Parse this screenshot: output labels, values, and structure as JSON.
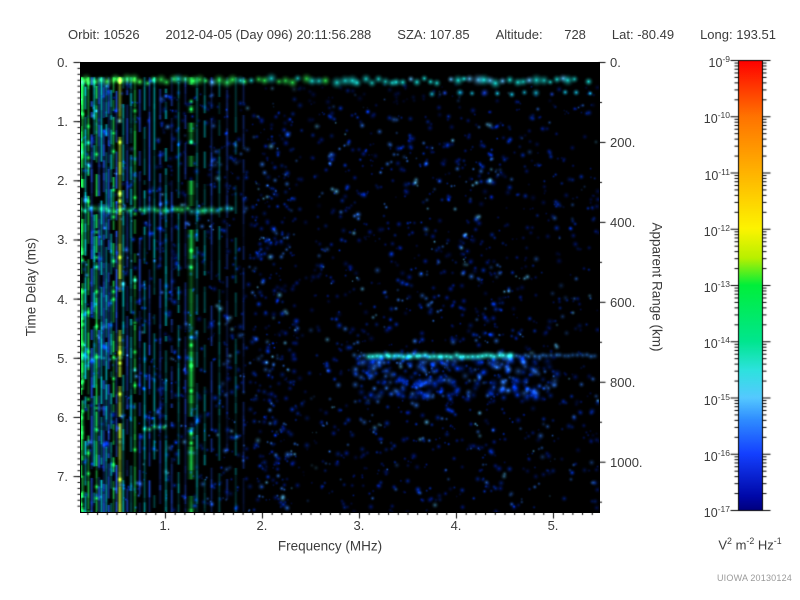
{
  "header": {
    "items": [
      "Orbit: 10526",
      "2012-04-05 (Day 096) 20:11:56.288",
      "SZA: 107.85",
      "Altitude:      728",
      "Lat: -80.49",
      "Long: 193.51"
    ]
  },
  "footer": {
    "credit": "UIOWA 20130124"
  },
  "chart_data": {
    "type": "heatmap",
    "subtype": "radar-ionogram-spectrogram",
    "x_axis": {
      "label": "Frequency (MHz)",
      "min": 0.124,
      "max": 5.464,
      "major_ticks": [
        1,
        2,
        3,
        4,
        5
      ],
      "tick_labels": [
        "1.",
        "2.",
        "3.",
        "4.",
        "5."
      ],
      "minor_step": 0.1
    },
    "y_axis": {
      "label": "Time Delay (ms)",
      "min": 0,
      "max": 7.59,
      "major_ticks": [
        0,
        1,
        2,
        3,
        4,
        5,
        6,
        7
      ],
      "tick_labels": [
        "0.",
        "1.",
        "2.",
        "3.",
        "4.",
        "5.",
        "6.",
        "7."
      ],
      "minor_step": 0.1
    },
    "y2_axis": {
      "label": "Apparent Range (km)",
      "major_ticks": [
        0,
        200,
        400,
        600,
        800,
        1000
      ],
      "tick_labels": [
        "0.",
        "200.",
        "400.",
        "600.",
        "800.",
        "1000."
      ],
      "minor_step": 100,
      "km_per_ms": 148
    },
    "colorbar": {
      "unit_parts": [
        {
          "base": "V",
          "exp": "2"
        },
        {
          "base": "m",
          "exp": "-2"
        },
        {
          "base": "Hz",
          "exp": "-1"
        }
      ],
      "tick_exponents": [
        -9,
        -10,
        -11,
        -12,
        -13,
        -14,
        -15,
        -16,
        -17
      ],
      "stops": [
        [
          0.0,
          "#ff0000"
        ],
        [
          0.125,
          "#ff7300"
        ],
        [
          0.25,
          "#ffb300"
        ],
        [
          0.375,
          "#fdf400"
        ],
        [
          0.44,
          "#b8f000"
        ],
        [
          0.5,
          "#00ef3a"
        ],
        [
          0.625,
          "#00e68e"
        ],
        [
          0.69,
          "#2ee2df"
        ],
        [
          0.75,
          "#55c9ff"
        ],
        [
          0.8,
          "#2f8cff"
        ],
        [
          0.875,
          "#1440ff"
        ],
        [
          0.97,
          "#0008a8"
        ],
        [
          1.0,
          "#000080"
        ]
      ]
    },
    "value_scale": {
      "max": "1e-9",
      "min": "1e-17",
      "units": "V^2 m^-2 Hz^-1"
    },
    "features": {
      "seed": 1337,
      "black_top_t": 0.21,
      "stripe_colors": {
        "g": "#1ee34f",
        "yg": "#b8ef2e",
        "c": "#00cfd4",
        "b": "#2356ff",
        "db": "#0f2fc0"
      },
      "plasma_stripes": [
        {
          "f": 0.128,
          "w": 2,
          "c": "g",
          "a": 0.9
        },
        {
          "f": 0.14,
          "w": 3,
          "c": "g",
          "a": 1.0
        },
        {
          "f": 0.17,
          "w": 2,
          "c": "c",
          "a": 0.9
        },
        {
          "f": 0.2,
          "w": 2,
          "c": "g",
          "a": 0.85
        },
        {
          "f": 0.235,
          "w": 2,
          "c": "b",
          "a": 0.9
        },
        {
          "f": 0.26,
          "w": 2,
          "c": "c",
          "a": 0.9
        },
        {
          "f": 0.285,
          "w": 2,
          "c": "g",
          "a": 0.9
        },
        {
          "f": 0.31,
          "w": 2,
          "c": "b",
          "a": 0.8
        },
        {
          "f": 0.335,
          "w": 2,
          "c": "c",
          "a": 0.9
        },
        {
          "f": 0.36,
          "w": 2,
          "c": "b",
          "a": 0.8
        },
        {
          "f": 0.385,
          "w": 2,
          "c": "c",
          "a": 0.9
        },
        {
          "f": 0.41,
          "w": 2,
          "c": "b",
          "a": 0.8
        },
        {
          "f": 0.435,
          "w": 2,
          "c": "c",
          "a": 0.8
        },
        {
          "f": 0.46,
          "w": 2,
          "c": "g",
          "a": 0.9
        },
        {
          "f": 0.49,
          "w": 2,
          "c": "b",
          "a": 0.8
        },
        {
          "f": 0.525,
          "w": 3,
          "c": "yg",
          "a": 1.0
        },
        {
          "f": 0.56,
          "w": 2,
          "c": "c",
          "a": 0.8
        },
        {
          "f": 0.6,
          "w": 2,
          "c": "b",
          "a": 0.7
        },
        {
          "f": 0.64,
          "w": 2,
          "c": "c",
          "a": 0.8
        },
        {
          "f": 0.68,
          "w": 2,
          "c": "g",
          "a": 0.85
        },
        {
          "f": 0.73,
          "w": 2,
          "c": "b",
          "a": 0.7
        },
        {
          "f": 0.78,
          "w": 2,
          "c": "c",
          "a": 0.75
        },
        {
          "f": 0.83,
          "w": 2,
          "c": "b",
          "a": 0.7
        },
        {
          "f": 0.88,
          "w": 2,
          "c": "c",
          "a": 0.7
        },
        {
          "f": 0.94,
          "w": 2,
          "c": "b",
          "a": 0.65
        },
        {
          "f": 1.0,
          "w": 2,
          "c": "c",
          "a": 0.7
        },
        {
          "f": 1.06,
          "w": 2,
          "c": "b",
          "a": 0.6
        },
        {
          "f": 1.13,
          "w": 2,
          "c": "c",
          "a": 0.55
        },
        {
          "f": 1.2,
          "w": 2,
          "c": "b",
          "a": 0.5
        },
        {
          "f": 1.26,
          "w": 5,
          "c": "g",
          "a": 1.0
        },
        {
          "f": 1.32,
          "w": 2,
          "c": "c",
          "a": 0.65
        },
        {
          "f": 1.4,
          "w": 2,
          "c": "c",
          "a": 0.55
        },
        {
          "f": 1.47,
          "w": 2,
          "c": "b",
          "a": 0.55
        },
        {
          "f": 1.55,
          "w": 2,
          "c": "c",
          "a": 0.45
        },
        {
          "f": 1.63,
          "w": 2,
          "c": "b",
          "a": 0.45
        },
        {
          "f": 1.72,
          "w": 2,
          "c": "c",
          "a": 0.4
        },
        {
          "f": 1.8,
          "w": 2,
          "c": "b",
          "a": 0.35
        }
      ],
      "speckle_palette": [
        [
          "#001e9e",
          0.5
        ],
        [
          "#0038e8",
          0.3
        ],
        [
          "#2f7dff",
          0.15
        ],
        [
          "#59c3ff",
          0.05
        ]
      ],
      "speckle_regions": [
        {
          "f0": 0.124,
          "f1": 0.9,
          "t0": 0.3,
          "t1": 7.59,
          "n": 260,
          "bright": 0.9
        },
        {
          "f0": 0.9,
          "f1": 1.9,
          "t0": 0.5,
          "t1": 7.59,
          "n": 430,
          "bright": 0.75
        },
        {
          "f0": 1.9,
          "f1": 2.36,
          "t0": 0.8,
          "t1": 7.59,
          "n": 330,
          "bright": 0.8
        },
        {
          "f0": 2.36,
          "f1": 2.6,
          "t0": 0.8,
          "t1": 7.59,
          "n": 55,
          "bright": 0.5
        },
        {
          "f0": 2.6,
          "f1": 4.6,
          "t0": 0.75,
          "t1": 7.59,
          "n": 800,
          "bright": 0.85
        },
        {
          "f0": 4.6,
          "f1": 5.46,
          "t0": 0.7,
          "t1": 7.59,
          "n": 270,
          "bright": 0.7
        },
        {
          "f0": 2.0,
          "f1": 5.46,
          "t0": 0.35,
          "t1": 0.75,
          "n": 60,
          "bright": 0.45
        }
      ],
      "bands": [
        {
          "kind": "noise-band",
          "t": 0.3,
          "f0": 0.124,
          "f1": 5.464,
          "r": 6.5,
          "step": 0.068
        },
        {
          "kind": "dot-row",
          "t": 0.52,
          "f0": 3.75,
          "f1": 5.464,
          "r": 4.5,
          "step": 0.135
        },
        {
          "kind": "echo-row",
          "t": 2.48,
          "f0": 0.124,
          "f1": 1.72,
          "r": 5,
          "step": 0.05
        },
        {
          "kind": "echo-row",
          "t": 4.98,
          "f0": 0.124,
          "f1": 0.6,
          "r": 3.5,
          "step": 0.06,
          "weak": true
        },
        {
          "kind": "surface",
          "t": 4.95,
          "f0": 2.95,
          "f1": 5.464,
          "bf0": 3.05,
          "bf1": 4.6,
          "glow_t1": 5.62
        },
        {
          "kind": "streak",
          "t": 6.18,
          "f0": 0.78,
          "f1": 1.02,
          "r": 4.5
        }
      ]
    }
  }
}
